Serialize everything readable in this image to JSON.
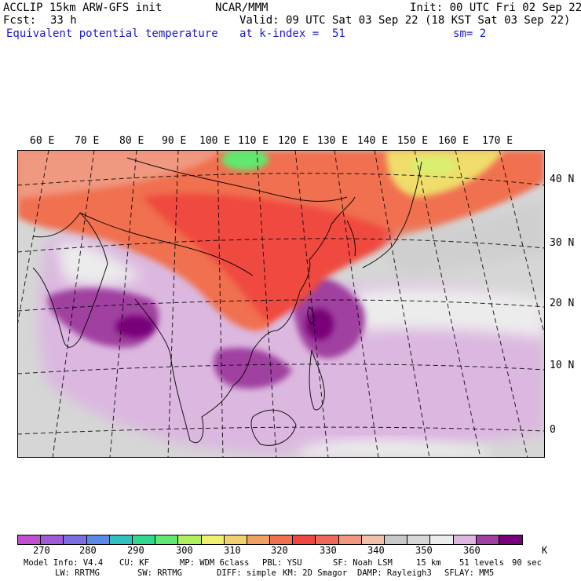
{
  "header": {
    "model": "ACCLIP 15km ARW-GFS init",
    "org": "NCAR/MMM",
    "init": "Init: 00 UTC Fri 02 Sep 22",
    "fcst_label": "Fcst:",
    "fcst_value": "33 h",
    "valid": "Valid: 09 UTC Sat 03 Sep 22 (18 KST Sat 03 Sep 22)",
    "field": "Equivalent potential temperature",
    "level": "at k-index =  51",
    "smooth": "sm= 2"
  },
  "map": {
    "lon_labels": [
      "60 E",
      "70 E",
      "80 E",
      "90 E",
      "100 E",
      "110 E",
      "120 E",
      "130 E",
      "140 E",
      "150 E",
      "160 E",
      "170 E"
    ],
    "lat_labels": [
      "40 N",
      "30 N",
      "20 N",
      "10 N",
      "0"
    ]
  },
  "colorbar": {
    "colors": [
      "#c050d0",
      "#a05ad8",
      "#7a6ee0",
      "#5a8ae8",
      "#30c0c0",
      "#30d890",
      "#60e870",
      "#b0f060",
      "#f0f070",
      "#f0d070",
      "#f0a060",
      "#f07050",
      "#f04840",
      "#f06858",
      "#f09880",
      "#f0c0a8",
      "#c8c8c8",
      "#d8d8d8",
      "#ececec",
      "#dcb8e0",
      "#a040a0",
      "#780078"
    ],
    "labels": [
      "270",
      "280",
      "290",
      "300",
      "310",
      "320",
      "330",
      "340",
      "350",
      "360",
      "K"
    ]
  },
  "model_info": {
    "line1": [
      "Model Info: V4.4",
      "CU: KF",
      "MP: WDM 6class",
      "PBL: YSU",
      "SF: Noah LSM",
      "15 km",
      "51 levels",
      "90 sec"
    ],
    "line2": [
      "LW: RRTMG",
      "SW: RRTMG",
      "DIFF: simple",
      "KM: 2D Smagor",
      "DAMP: Rayleigh3",
      "SFLAY: MM5"
    ]
  }
}
